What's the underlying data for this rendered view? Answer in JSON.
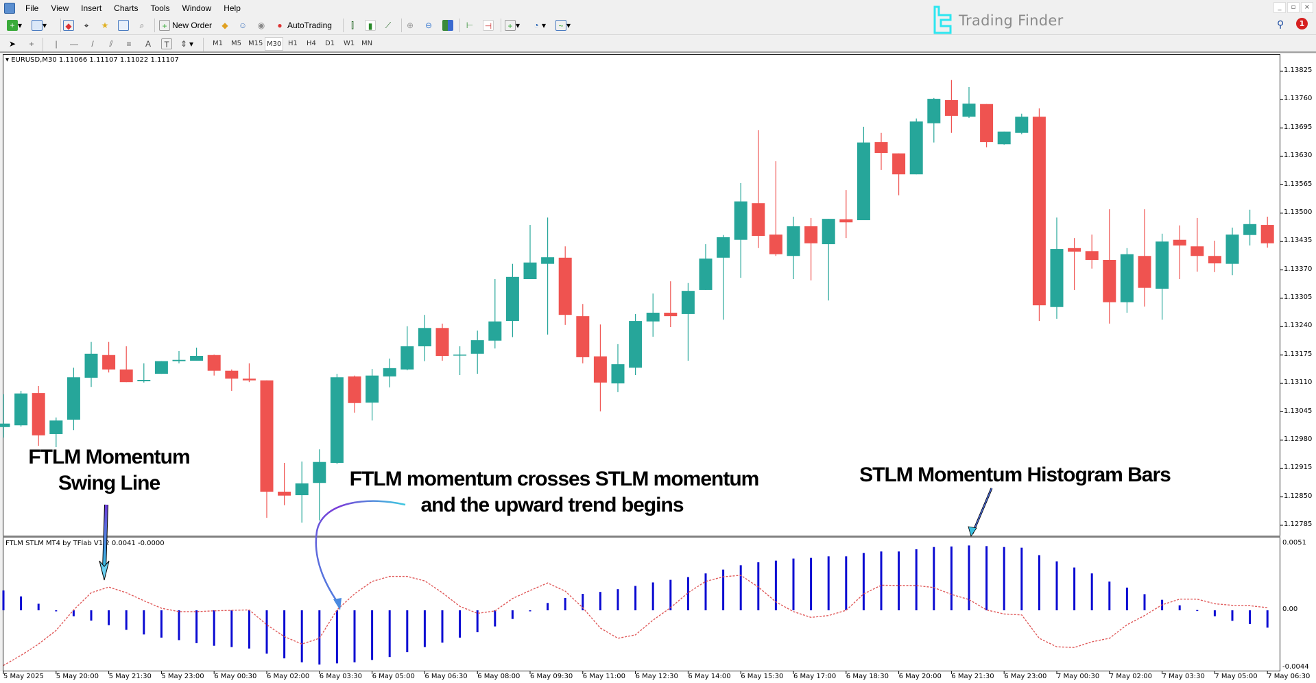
{
  "menu": [
    "File",
    "View",
    "Insert",
    "Charts",
    "Tools",
    "Window",
    "Help"
  ],
  "window_controls": {
    "minimize": "_",
    "restore": "▫",
    "close": "×"
  },
  "toolbar": {
    "new_order": "New Order",
    "autotrading": "AutoTrading"
  },
  "timeframes": [
    "M1",
    "M5",
    "M15",
    "M30",
    "H1",
    "H4",
    "D1",
    "W1",
    "MN"
  ],
  "active_timeframe": "M30",
  "logo": {
    "text": "Trading Finder",
    "color": "#2ee6f0"
  },
  "notifications": {
    "count": "1"
  },
  "chart": {
    "header": "EURUSD,M30  1.11066 1.11107 1.11022 1.11107",
    "price_labels": [
      "1.13825",
      "1.13760",
      "1.13695",
      "1.13630",
      "1.13565",
      "1.13500",
      "1.13435",
      "1.13370",
      "1.13305",
      "1.13240",
      "1.13175",
      "1.13110",
      "1.13045",
      "1.12980",
      "1.12915",
      "1.12850",
      "1.12785"
    ],
    "colors": {
      "bull": "#26a69a",
      "bear": "#ef5350"
    }
  },
  "indicator": {
    "header": "FTLM STLM MT4 by TFlab V1.2 0.0041 -0.0000",
    "axis_labels": [
      "0.0051",
      "0.00",
      "-0.0044"
    ],
    "colors": {
      "histogram": "#0a0ad2",
      "line": "#e05a5a"
    }
  },
  "time_labels": [
    "5 May 2025",
    "5 May 20:00",
    "5 May 21:30",
    "5 May 23:00",
    "6 May 00:30",
    "6 May 02:00",
    "6 May 03:30",
    "6 May 05:00",
    "6 May 06:30",
    "6 May 08:00",
    "6 May 09:30",
    "6 May 11:00",
    "6 May 12:30",
    "6 May 14:00",
    "6 May 15:30",
    "6 May 17:00",
    "6 May 18:30",
    "6 May 20:00",
    "6 May 21:30",
    "6 May 23:00",
    "7 May 00:30",
    "7 May 02:00",
    "7 May 03:30",
    "7 May 05:00",
    "7 May 06:30"
  ],
  "annotations": {
    "swing_line": [
      "FTLM Momentum",
      "Swing Line"
    ],
    "cross": [
      "FTLM momentum crosses STLM momentum",
      "and the upward trend begins"
    ],
    "histogram": "STLM Momentum Histogram Bars"
  },
  "chart_data": [
    {
      "type": "candlestick",
      "symbol": "EURUSD,M30",
      "ylim": [
        1.12785,
        1.13825
      ],
      "ohlc": [
        [
          1.1301,
          1.13085,
          1.12986,
          1.13018
        ],
        [
          1.13014,
          1.13093,
          1.13011,
          1.13087
        ],
        [
          1.13088,
          1.13104,
          1.12967,
          1.12991
        ],
        [
          1.12994,
          1.13032,
          1.12964,
          1.13025
        ],
        [
          1.13027,
          1.13146,
          1.13003,
          1.13124
        ],
        [
          1.13123,
          1.13205,
          1.13102,
          1.13178
        ],
        [
          1.13175,
          1.13205,
          1.13135,
          1.13142
        ],
        [
          1.13142,
          1.13195,
          1.13113,
          1.13113
        ],
        [
          1.13115,
          1.13156,
          1.13112,
          1.13118
        ],
        [
          1.13132,
          1.13161,
          1.13132,
          1.13161
        ],
        [
          1.13161,
          1.13184,
          1.13156,
          1.13164
        ],
        [
          1.13162,
          1.13192,
          1.13162,
          1.13173
        ],
        [
          1.13175,
          1.13176,
          1.13128,
          1.13139
        ],
        [
          1.13139,
          1.13142,
          1.13093,
          1.13121
        ],
        [
          1.13121,
          1.13156,
          1.13113,
          1.13117
        ],
        [
          1.13117,
          1.13117,
          1.12802,
          1.12862
        ],
        [
          1.12862,
          1.12928,
          1.12831,
          1.12853
        ],
        [
          1.12854,
          1.12931,
          1.12791,
          1.12881
        ],
        [
          1.12882,
          1.12959,
          1.12796,
          1.1293
        ],
        [
          1.12928,
          1.13132,
          1.12925,
          1.13124
        ],
        [
          1.13126,
          1.13128,
          1.13043,
          1.13065
        ],
        [
          1.13066,
          1.13143,
          1.13025,
          1.13128
        ],
        [
          1.13126,
          1.13167,
          1.13101,
          1.13145
        ],
        [
          1.13142,
          1.13241,
          1.1314,
          1.13195
        ],
        [
          1.13195,
          1.13267,
          1.13161,
          1.13237
        ],
        [
          1.13237,
          1.13247,
          1.13162,
          1.13173
        ],
        [
          1.13175,
          1.13195,
          1.13129,
          1.13176
        ],
        [
          1.13178,
          1.13231,
          1.13132,
          1.13209
        ],
        [
          1.13208,
          1.13349,
          1.1319,
          1.13252
        ],
        [
          1.13253,
          1.13384,
          1.13216,
          1.13354
        ],
        [
          1.13349,
          1.13473,
          1.13349,
          1.13387
        ],
        [
          1.13384,
          1.1349,
          1.13222,
          1.13399
        ],
        [
          1.13398,
          1.13424,
          1.13244,
          1.13267
        ],
        [
          1.13264,
          1.13292,
          1.13156,
          1.1317
        ],
        [
          1.13172,
          1.13245,
          1.13046,
          1.13112
        ],
        [
          1.1311,
          1.132,
          1.1309,
          1.13154
        ],
        [
          1.13146,
          1.13269,
          1.13129,
          1.13253
        ],
        [
          1.13252,
          1.13316,
          1.13217,
          1.13272
        ],
        [
          1.13272,
          1.13344,
          1.13239,
          1.13264
        ],
        [
          1.13269,
          1.1334,
          1.13162,
          1.13322
        ],
        [
          1.13324,
          1.13429,
          1.13324,
          1.13396
        ],
        [
          1.13398,
          1.1345,
          1.13256,
          1.13445
        ],
        [
          1.13439,
          1.13569,
          1.13352,
          1.13527
        ],
        [
          1.13523,
          1.1369,
          1.1342,
          1.13448
        ],
        [
          1.13451,
          1.13619,
          1.13402,
          1.13406
        ],
        [
          1.13402,
          1.13492,
          1.13349,
          1.1347
        ],
        [
          1.1347,
          1.13489,
          1.13346,
          1.13431
        ],
        [
          1.13429,
          1.13487,
          1.133,
          1.13487
        ],
        [
          1.13486,
          1.13553,
          1.13443,
          1.13479
        ],
        [
          1.13484,
          1.13698,
          1.13484,
          1.13662
        ],
        [
          1.13663,
          1.13684,
          1.13599,
          1.13638
        ],
        [
          1.13637,
          1.13637,
          1.13541,
          1.13589
        ],
        [
          1.13589,
          1.13717,
          1.13589,
          1.1371
        ],
        [
          1.13706,
          1.13764,
          1.13662,
          1.13762
        ],
        [
          1.13759,
          1.13805,
          1.13684,
          1.13723
        ],
        [
          1.13721,
          1.13789,
          1.13718,
          1.13751
        ],
        [
          1.1375,
          1.1375,
          1.13651,
          1.13663
        ],
        [
          1.13658,
          1.13687,
          1.13657,
          1.13687
        ],
        [
          1.13684,
          1.13728,
          1.13681,
          1.13721
        ],
        [
          1.13721,
          1.1374,
          1.13253,
          1.13289
        ],
        [
          1.13285,
          1.1349,
          1.13258,
          1.13418
        ],
        [
          1.1342,
          1.13443,
          1.13324,
          1.13412
        ],
        [
          1.13413,
          1.13451,
          1.13373,
          1.13393
        ],
        [
          1.13393,
          1.13509,
          1.13247,
          1.13296
        ],
        [
          1.13296,
          1.1342,
          1.13272,
          1.13406
        ],
        [
          1.13402,
          1.13509,
          1.13286,
          1.13329
        ],
        [
          1.13327,
          1.13453,
          1.13256,
          1.13435
        ],
        [
          1.13439,
          1.13472,
          1.13349,
          1.13426
        ],
        [
          1.13424,
          1.13489,
          1.13366,
          1.13402
        ],
        [
          1.13402,
          1.13437,
          1.13365,
          1.13385
        ],
        [
          1.13384,
          1.13467,
          1.13358,
          1.13451
        ],
        [
          1.1345,
          1.13508,
          1.13426,
          1.13475
        ],
        [
          1.13473,
          1.13492,
          1.13421,
          1.13431
        ]
      ]
    },
    {
      "type": "bar+line",
      "ylim": [
        -0.0044,
        0.0051
      ],
      "series": [
        {
          "name": "STLM Momentum Histogram Bars",
          "type": "bar",
          "values": [
            0.00151,
            0.00106,
            0.0005,
            -7e-05,
            -0.00045,
            -0.00078,
            -0.00113,
            -0.00149,
            -0.00184,
            -0.00208,
            -0.00227,
            -0.0025,
            -0.0027,
            -0.0028,
            -0.00291,
            -0.0033,
            -0.00366,
            -0.00396,
            -0.00413,
            -0.00404,
            -0.00396,
            -0.00378,
            -0.00356,
            -0.00319,
            -0.0028,
            -0.00246,
            -0.00208,
            -0.00167,
            -0.00123,
            -0.00066,
            -7e-05,
            0.00056,
            0.00094,
            0.00125,
            0.0014,
            0.00161,
            0.00186,
            0.00212,
            0.00232,
            0.00253,
            0.00281,
            0.0031,
            0.00343,
            0.00366,
            0.00378,
            0.00394,
            0.00399,
            0.00411,
            0.00411,
            0.00437,
            0.00448,
            0.00448,
            0.00465,
            0.00482,
            0.00486,
            0.00494,
            0.00489,
            0.00482,
            0.00477,
            0.0042,
            0.00373,
            0.00326,
            0.00281,
            0.00219,
            0.00173,
            0.00123,
            0.0008,
            0.00038,
            2e-05,
            -0.00045,
            -0.0008,
            -0.00104,
            -0.00132
          ]
        },
        {
          "name": "FTLM Momentum Swing Line",
          "type": "line",
          "values": [
            -0.0042,
            -0.00343,
            -0.00257,
            -0.00153,
            3e-05,
            0.00134,
            0.00177,
            0.00134,
            0.00073,
            0.00016,
            -0.0001,
            -0.0001,
            -4e-05,
            0,
            3e-05,
            -0.0011,
            -0.002,
            -0.00257,
            -0.00213,
            3e-05,
            0.00125,
            0.0022,
            0.00258,
            0.00258,
            0.00224,
            0.00134,
            0.0003,
            -0.00023,
            -5e-05,
            0.0009,
            0.00151,
            0.00208,
            0.00146,
            0.0002,
            -0.00135,
            -0.00213,
            -0.00187,
            -0.00075,
            0.0002,
            0.00134,
            0.0022,
            0.00255,
            0.00267,
            0.00177,
            0.00064,
            -0.0001,
            -0.00054,
            -0.0004,
            0,
            0.00125,
            0.00191,
            0.00189,
            0.00189,
            0.00173,
            0.00121,
            0.00082,
            3e-05,
            -0.00028,
            -0.00035,
            -0.00213,
            -0.00278,
            -0.00283,
            -0.0024,
            -0.00213,
            -0.0011,
            -0.0004,
            0.00042,
            0.00085,
            0.00085,
            0.0005,
            0.00038,
            0.00035,
            0.0002
          ]
        }
      ]
    }
  ]
}
